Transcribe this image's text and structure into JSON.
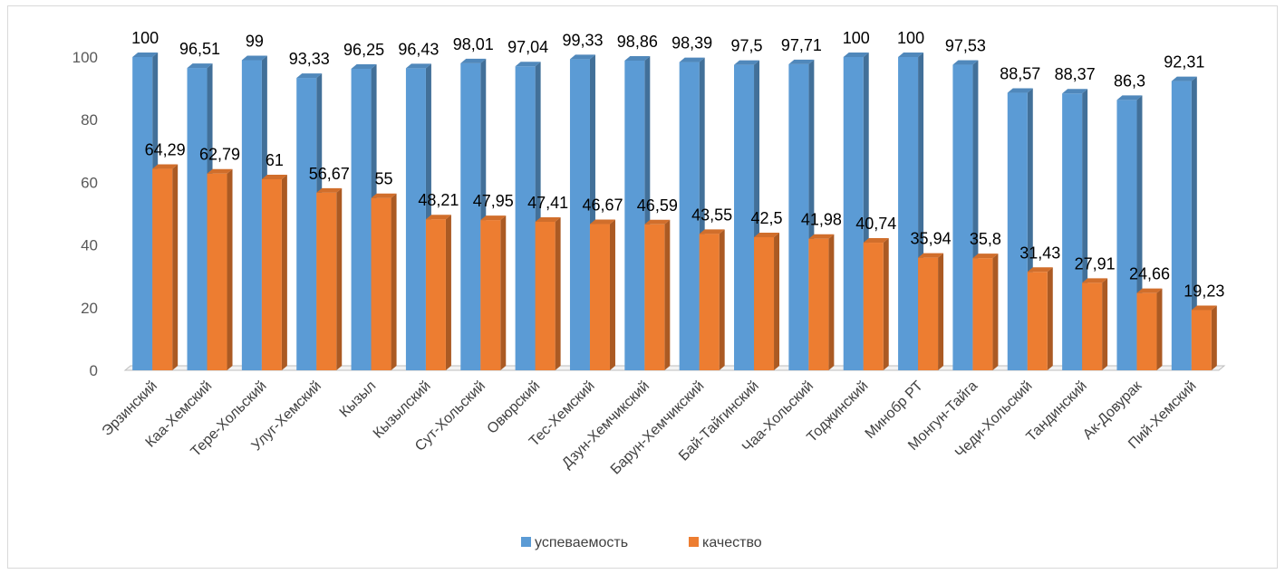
{
  "chart_data": {
    "type": "bar",
    "style": "3d-clustered-column",
    "categories": [
      "Эрзинский",
      "Каа-Хемский",
      "Тере-Хольский",
      "Улуг-Хемский",
      "Кызыл",
      "Кызылский",
      "Сут-Хольский",
      "Овюрский",
      "Тес-Хемский",
      "Дзун-Хемчикский",
      "Барун-Хемчикский",
      "Бай-Тайгинский",
      "Чаа-Хольский",
      "Тоджинский",
      "Минобр РТ",
      "Монгун-Тайга",
      "Чеди-Хольский",
      "Тандинский",
      "Ак-Довурак",
      "Пий-Хемский"
    ],
    "series": [
      {
        "name": "успеваемость",
        "color": "#5b9bd5",
        "values": [
          100,
          96.51,
          99,
          93.33,
          96.25,
          96.43,
          98.01,
          97.04,
          99.33,
          98.86,
          98.39,
          97.5,
          97.71,
          100,
          100,
          97.53,
          88.57,
          88.37,
          86.3,
          92.31
        ],
        "labels": [
          "100",
          "96,51",
          "99",
          "93,33",
          "96,25",
          "96,43",
          "98,01",
          "97,04",
          "99,33",
          "98,86",
          "98,39",
          "97,5",
          "97,71",
          "100",
          "100",
          "97,53",
          "88,57",
          "88,37",
          "86,3",
          "92,31"
        ]
      },
      {
        "name": "качество",
        "color": "#ed7d31",
        "values": [
          64.29,
          62.79,
          61,
          56.67,
          55,
          48.21,
          47.95,
          47.41,
          46.67,
          46.59,
          43.55,
          42.5,
          41.98,
          40.74,
          35.94,
          35.8,
          31.43,
          27.91,
          24.66,
          19.23
        ],
        "labels": [
          "64,29",
          "62,79",
          "61",
          "56,67",
          "55",
          "48,21",
          "47,95",
          "47,41",
          "46,67",
          "46,59",
          "43,55",
          "42,5",
          "41,98",
          "40,74",
          "35,94",
          "35,8",
          "31,43",
          "27,91",
          "24,66",
          "19,23"
        ]
      }
    ],
    "y_ticks": [
      "0",
      "20",
      "40",
      "60",
      "80",
      "100"
    ],
    "ylim": [
      0,
      100
    ],
    "grid": false,
    "legend": "bottom"
  }
}
